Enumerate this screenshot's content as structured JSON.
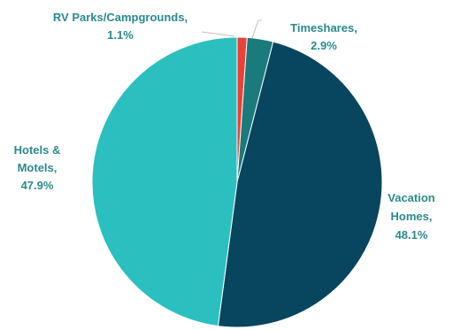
{
  "chart_data": {
    "type": "pie",
    "title": "",
    "slices": [
      {
        "name": "RV Parks/Campgrounds",
        "value": 1.1,
        "label_lines": [
          "RV Parks/Campgrounds,",
          "1.1%"
        ],
        "color": "#e8423a"
      },
      {
        "name": "Timeshares",
        "value": 2.9,
        "label_lines": [
          "Timeshares,",
          "2.9%"
        ],
        "color": "#1a7a7c"
      },
      {
        "name": "Vacation Homes",
        "value": 48.1,
        "label_lines": [
          "Vacation",
          "Homes,",
          "48.1%"
        ],
        "color": "#07465e"
      },
      {
        "name": "Hotels & Motels",
        "value": 47.9,
        "label_lines": [
          "Hotels  &",
          "Motels,",
          "47.9%"
        ],
        "color": "#2bbfbf"
      }
    ],
    "start_angle_deg": 0,
    "direction": "clockwise",
    "legend": "none",
    "label_color": "#2a8a8c"
  }
}
